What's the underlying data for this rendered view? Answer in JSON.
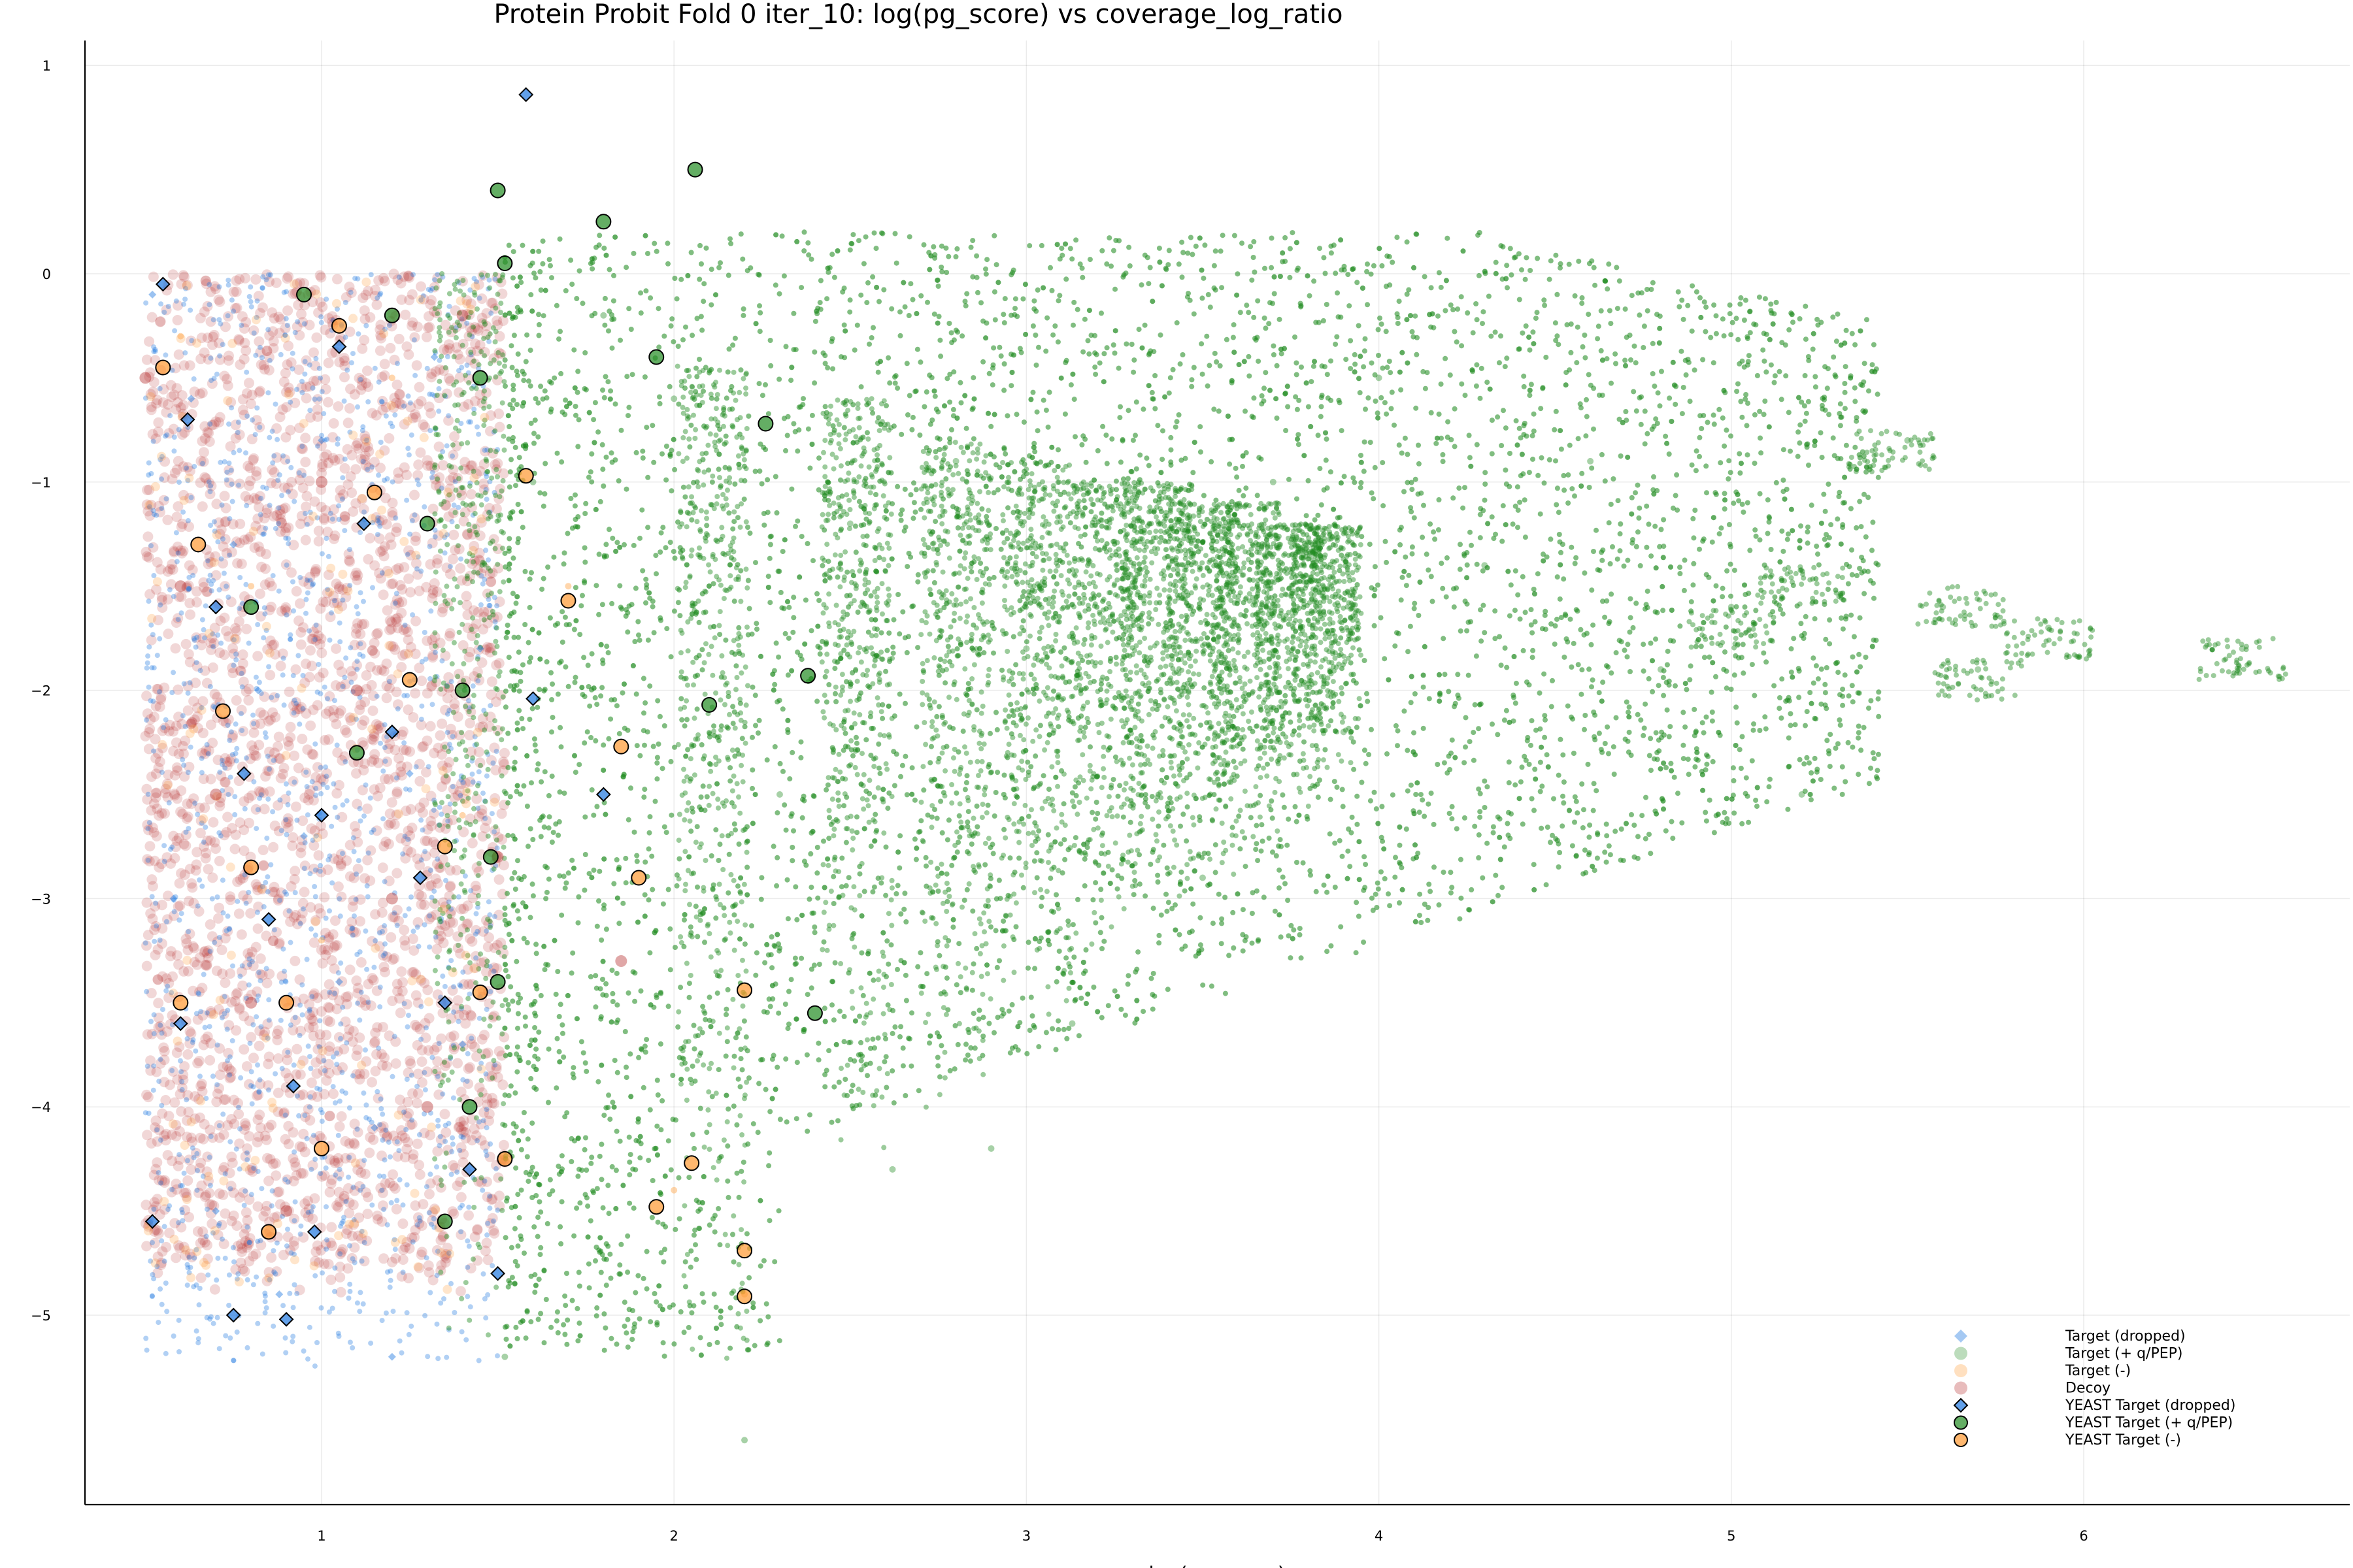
{
  "chart_data": {
    "type": "scatter",
    "title": "Protein Probit Fold 0 iter_10: log(pg_score) vs coverage_log_ratio",
    "xlabel": "log(pg_score)",
    "ylabel": "",
    "xlim": [
      0.33,
      6.75
    ],
    "ylim": [
      -5.9,
      1.12
    ],
    "x_ticks": [
      1,
      2,
      3,
      4,
      5,
      6
    ],
    "y_ticks": [
      1,
      0,
      -1,
      -2,
      -3,
      -4,
      -5
    ],
    "x_tick_labels": [
      "1",
      "2",
      "3",
      "4",
      "5",
      "6"
    ],
    "y_tick_labels": [
      "1",
      "0",
      "−1",
      "−2",
      "−3",
      "−4",
      "−5"
    ],
    "grid": true,
    "legend_position": "bottom-right",
    "series": [
      {
        "name": "Target (dropped)",
        "marker": "diamond",
        "color": "#1f78e0",
        "points": [
          [
            0.52,
            -0.1
          ],
          [
            0.63,
            -0.6
          ],
          [
            0.75,
            -1.3
          ],
          [
            0.82,
            -2.0
          ],
          [
            0.95,
            -2.7
          ],
          [
            1.05,
            -3.4
          ],
          [
            1.15,
            -4.1
          ],
          [
            0.88,
            -4.9
          ],
          [
            1.2,
            -5.2
          ],
          [
            1.32,
            -0.4
          ],
          [
            1.45,
            -1.8
          ],
          [
            0.58,
            -3.0
          ],
          [
            0.7,
            -4.5
          ],
          [
            1.0,
            -0.8
          ],
          [
            1.25,
            -2.4
          ],
          [
            1.4,
            -3.7
          ]
        ]
      },
      {
        "name": "Target (+ q/PEP)",
        "marker": "circle",
        "color": "#228b22",
        "points": [
          [
            1.52,
            -5.2
          ],
          [
            1.6,
            -1.0
          ],
          [
            1.8,
            -0.2
          ],
          [
            2.0,
            -0.6
          ],
          [
            2.2,
            -5.6
          ],
          [
            2.3,
            -2.5
          ],
          [
            2.5,
            -1.2
          ],
          [
            2.62,
            -4.3
          ],
          [
            2.8,
            -0.9
          ],
          [
            2.9,
            -4.2
          ],
          [
            3.0,
            -1.8
          ],
          [
            3.13,
            -3.6
          ],
          [
            3.3,
            -1.5
          ],
          [
            3.5,
            -2.9
          ],
          [
            3.7,
            -1.0
          ],
          [
            3.9,
            -2.2
          ],
          [
            4.0,
            -0.5
          ],
          [
            4.3,
            -1.4
          ],
          [
            4.6,
            -0.9
          ],
          [
            4.8,
            -1.9
          ],
          [
            5.0,
            -1.6
          ],
          [
            5.2,
            -2.5
          ],
          [
            5.5,
            -0.8
          ],
          [
            5.6,
            -1.6
          ],
          [
            5.7,
            -1.9
          ],
          [
            5.9,
            -1.7
          ],
          [
            6.45,
            -1.8
          ]
        ]
      },
      {
        "name": "Target (-)",
        "marker": "circle",
        "color": "#ff9830",
        "points": [
          [
            0.6,
            -0.3
          ],
          [
            0.8,
            -1.5
          ],
          [
            1.0,
            -3.2
          ],
          [
            1.2,
            -0.5
          ],
          [
            1.4,
            -2.6
          ],
          [
            1.7,
            -1.5
          ],
          [
            2.0,
            -4.4
          ],
          [
            2.2,
            -4.9
          ]
        ]
      },
      {
        "name": "Decoy",
        "marker": "circle",
        "color": "#b22222",
        "points": [
          [
            0.5,
            -0.5
          ],
          [
            0.6,
            -1.5
          ],
          [
            0.7,
            -2.5
          ],
          [
            0.8,
            -3.5
          ],
          [
            0.9,
            -4.5
          ],
          [
            1.0,
            -1.0
          ],
          [
            1.1,
            -2.0
          ],
          [
            1.2,
            -3.0
          ],
          [
            1.3,
            -4.0
          ],
          [
            1.4,
            -0.2
          ],
          [
            1.5,
            -2.8
          ],
          [
            1.85,
            -3.3
          ]
        ]
      },
      {
        "name": "YEAST Target (dropped)",
        "marker": "diamond",
        "color": "#1f78e0",
        "points": [
          [
            0.55,
            -0.05
          ],
          [
            0.62,
            -0.7
          ],
          [
            0.7,
            -1.6
          ],
          [
            0.78,
            -2.4
          ],
          [
            0.85,
            -3.1
          ],
          [
            0.92,
            -3.9
          ],
          [
            0.98,
            -4.6
          ],
          [
            0.75,
            -5.0
          ],
          [
            0.9,
            -5.02
          ],
          [
            1.05,
            -0.35
          ],
          [
            1.12,
            -1.2
          ],
          [
            1.2,
            -2.2
          ],
          [
            1.28,
            -2.9
          ],
          [
            1.35,
            -3.5
          ],
          [
            1.42,
            -4.3
          ],
          [
            1.5,
            -4.8
          ],
          [
            1.58,
            0.86
          ],
          [
            1.6,
            -2.04
          ],
          [
            1.8,
            -2.5
          ],
          [
            0.52,
            -4.55
          ],
          [
            0.6,
            -3.6
          ],
          [
            1.0,
            -2.6
          ]
        ]
      },
      {
        "name": "YEAST Target (+ q/PEP)",
        "marker": "circle",
        "color": "#228b22",
        "points": [
          [
            1.5,
            0.4
          ],
          [
            1.52,
            0.05
          ],
          [
            1.45,
            -0.5
          ],
          [
            1.3,
            -1.2
          ],
          [
            1.4,
            -2.0
          ],
          [
            1.48,
            -2.8
          ],
          [
            1.5,
            -3.4
          ],
          [
            1.42,
            -4.0
          ],
          [
            1.35,
            -4.55
          ],
          [
            1.2,
            -0.2
          ],
          [
            1.1,
            -2.3
          ],
          [
            1.8,
            0.25
          ],
          [
            2.06,
            0.5
          ],
          [
            2.26,
            -0.72
          ],
          [
            2.38,
            -1.93
          ],
          [
            2.1,
            -2.07
          ],
          [
            2.4,
            -3.55
          ],
          [
            1.95,
            -0.4
          ],
          [
            0.95,
            -0.1
          ],
          [
            0.8,
            -1.6
          ]
        ]
      },
      {
        "name": "YEAST Target (-)",
        "marker": "circle",
        "color": "#ff9830",
        "points": [
          [
            0.55,
            -0.45
          ],
          [
            0.65,
            -1.3
          ],
          [
            0.72,
            -2.1
          ],
          [
            0.8,
            -2.85
          ],
          [
            0.9,
            -3.5
          ],
          [
            1.0,
            -4.2
          ],
          [
            1.05,
            -0.25
          ],
          [
            1.15,
            -1.05
          ],
          [
            1.25,
            -1.95
          ],
          [
            1.35,
            -2.75
          ],
          [
            1.45,
            -3.45
          ],
          [
            1.52,
            -4.25
          ],
          [
            1.58,
            -0.97
          ],
          [
            1.7,
            -1.57
          ],
          [
            1.85,
            -2.27
          ],
          [
            1.9,
            -2.9
          ],
          [
            1.95,
            -4.48
          ],
          [
            2.2,
            -3.44
          ],
          [
            2.2,
            -4.69
          ],
          [
            2.2,
            -4.91
          ],
          [
            2.05,
            -4.27
          ],
          [
            0.6,
            -3.5
          ],
          [
            0.85,
            -4.6
          ]
        ]
      }
    ]
  }
}
